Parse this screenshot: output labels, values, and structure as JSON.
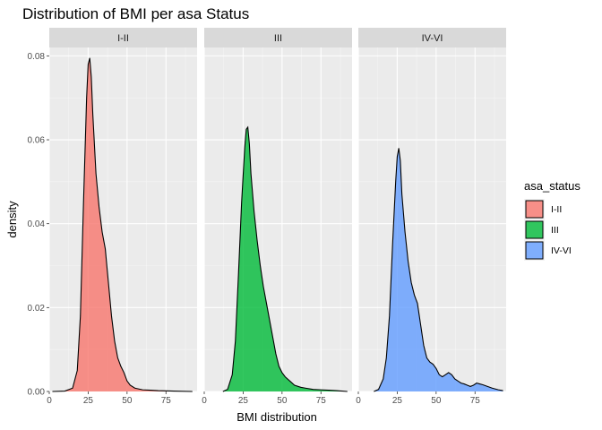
{
  "chart_data": {
    "type": "area",
    "title": "Distribution of BMI per asa Status",
    "xlabel": "BMI distribution",
    "ylabel": "density",
    "xlim": [
      0,
      95
    ],
    "ylim": [
      0,
      0.082
    ],
    "x_ticks": [
      0,
      25,
      50,
      75
    ],
    "y_ticks": [
      0,
      0.02,
      0.04,
      0.06,
      0.08
    ],
    "y_tick_labels": [
      "0.00",
      "0.02",
      "0.04",
      "0.06",
      "0.08"
    ],
    "grid": true,
    "legend": {
      "title": "asa_status",
      "position": "right",
      "entries": [
        "I-II",
        "III",
        "IV-VI"
      ]
    },
    "series": [
      {
        "name": "I-II",
        "color": "#F8766D",
        "points": [
          [
            2,
            0
          ],
          [
            10,
            0.0001
          ],
          [
            15,
            0.0008
          ],
          [
            18,
            0.005
          ],
          [
            20,
            0.018
          ],
          [
            22,
            0.045
          ],
          [
            24,
            0.07
          ],
          [
            25,
            0.078
          ],
          [
            26,
            0.0795
          ],
          [
            27,
            0.075
          ],
          [
            28,
            0.066
          ],
          [
            30,
            0.052
          ],
          [
            32,
            0.044
          ],
          [
            34,
            0.038
          ],
          [
            36,
            0.034
          ],
          [
            38,
            0.026
          ],
          [
            40,
            0.018
          ],
          [
            42,
            0.012
          ],
          [
            44,
            0.008
          ],
          [
            46,
            0.006
          ],
          [
            48,
            0.0045
          ],
          [
            50,
            0.0025
          ],
          [
            52,
            0.0015
          ],
          [
            55,
            0.0008
          ],
          [
            60,
            0.0004
          ],
          [
            65,
            0.0003
          ],
          [
            70,
            0.0002
          ],
          [
            80,
            0.0001
          ],
          [
            92,
            0
          ]
        ]
      },
      {
        "name": "III",
        "color": "#00BA38",
        "points": [
          [
            12,
            0
          ],
          [
            15,
            0.0005
          ],
          [
            18,
            0.004
          ],
          [
            20,
            0.012
          ],
          [
            22,
            0.028
          ],
          [
            24,
            0.045
          ],
          [
            26,
            0.058
          ],
          [
            27,
            0.0625
          ],
          [
            28,
            0.063
          ],
          [
            29,
            0.059
          ],
          [
            30,
            0.052
          ],
          [
            32,
            0.043
          ],
          [
            34,
            0.036
          ],
          [
            36,
            0.03
          ],
          [
            38,
            0.025
          ],
          [
            40,
            0.021
          ],
          [
            42,
            0.017
          ],
          [
            44,
            0.013
          ],
          [
            46,
            0.009
          ],
          [
            48,
            0.006
          ],
          [
            50,
            0.0045
          ],
          [
            52,
            0.0035
          ],
          [
            55,
            0.0025
          ],
          [
            58,
            0.0015
          ],
          [
            62,
            0.001
          ],
          [
            65,
            0.0008
          ],
          [
            70,
            0.0005
          ],
          [
            75,
            0.0004
          ],
          [
            80,
            0.0003
          ],
          [
            85,
            0.0002
          ],
          [
            92,
            0
          ]
        ]
      },
      {
        "name": "IV-VI",
        "color": "#619CFF",
        "points": [
          [
            10,
            0
          ],
          [
            13,
            0.0005
          ],
          [
            16,
            0.003
          ],
          [
            18,
            0.008
          ],
          [
            20,
            0.018
          ],
          [
            22,
            0.035
          ],
          [
            24,
            0.05
          ],
          [
            25,
            0.056
          ],
          [
            26,
            0.058
          ],
          [
            27,
            0.055
          ],
          [
            28,
            0.047
          ],
          [
            30,
            0.038
          ],
          [
            32,
            0.031
          ],
          [
            34,
            0.026
          ],
          [
            36,
            0.023
          ],
          [
            38,
            0.021
          ],
          [
            40,
            0.016
          ],
          [
            42,
            0.011
          ],
          [
            44,
            0.008
          ],
          [
            46,
            0.007
          ],
          [
            48,
            0.0065
          ],
          [
            50,
            0.0055
          ],
          [
            52,
            0.004
          ],
          [
            54,
            0.0035
          ],
          [
            56,
            0.004
          ],
          [
            58,
            0.0045
          ],
          [
            60,
            0.004
          ],
          [
            62,
            0.003
          ],
          [
            64,
            0.0025
          ],
          [
            66,
            0.002
          ],
          [
            68,
            0.0018
          ],
          [
            70,
            0.0015
          ],
          [
            72,
            0.0012
          ],
          [
            74,
            0.0015
          ],
          [
            76,
            0.002
          ],
          [
            78,
            0.0018
          ],
          [
            80,
            0.0016
          ],
          [
            83,
            0.0012
          ],
          [
            86,
            0.0008
          ],
          [
            90,
            0.0004
          ],
          [
            93,
            0.0002
          ]
        ]
      }
    ]
  }
}
